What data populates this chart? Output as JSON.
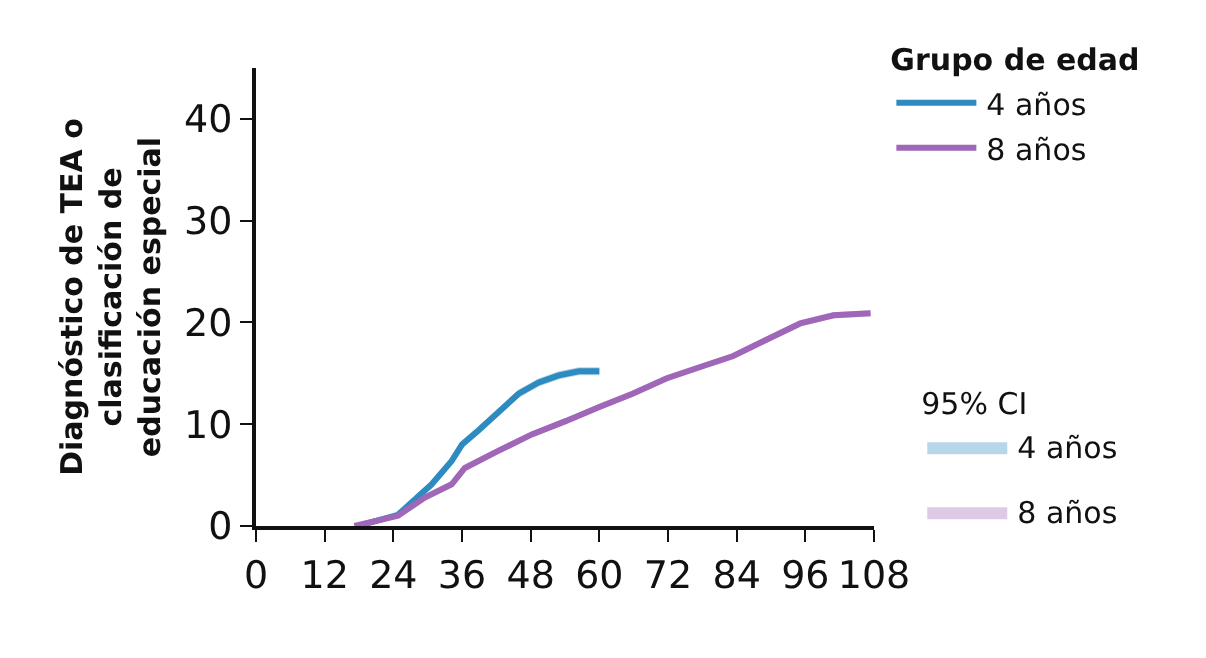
{
  "chart_data": {
    "type": "line",
    "ylabel": "Diagnóstico de TEA o clasificación de educación especial",
    "legend_title": "Grupo de edad",
    "annotations": [
      "95% CI"
    ],
    "xlim": [
      0,
      108
    ],
    "xticks": [
      0,
      12,
      24,
      36,
      48,
      60,
      72,
      84,
      96,
      108
    ],
    "ylim": [
      0,
      45
    ],
    "yticks": [
      0,
      10,
      20,
      30,
      40
    ],
    "legend": "right",
    "marker": "none",
    "line_style": "solid",
    "series": [
      {
        "name": "4 años",
        "color": "#2e8bc0",
        "x": [
          17.8,
          24.8,
          30.7,
          34.2,
          36,
          38.9,
          42.4,
          45.9,
          49.4,
          52.9,
          56.4,
          60
        ],
        "values": [
          0,
          1.1,
          4.1,
          6.4,
          8.0,
          9.4,
          11.2,
          13.0,
          14.1,
          14.8,
          15.2,
          15.2
        ],
        "lower": [
          0,
          0.8,
          3.7,
          6.0,
          7.6,
          9.0,
          10.8,
          12.6,
          13.7,
          14.4,
          14.8,
          14.8
        ],
        "upper": [
          0,
          1.4,
          4.5,
          6.8,
          8.4,
          9.8,
          11.6,
          13.4,
          14.5,
          15.2,
          15.6,
          15.6
        ]
      },
      {
        "name": "8 años",
        "color": "#a066b8",
        "x": [
          17.2,
          24.8,
          29.5,
          34.2,
          36.5,
          42.4,
          48.2,
          54.1,
          60,
          65.8,
          71.7,
          77.5,
          83.4,
          89.2,
          95.1,
          100.9,
          107.4
        ],
        "values": [
          0,
          1.0,
          2.8,
          4.1,
          5.7,
          7.4,
          9.0,
          10.3,
          11.7,
          13.0,
          14.5,
          15.6,
          16.7,
          18.3,
          19.9,
          20.7,
          20.9
        ],
        "lower": [
          0,
          0.8,
          2.5,
          3.8,
          5.4,
          7.1,
          8.7,
          10.0,
          11.4,
          12.7,
          14.2,
          15.3,
          16.4,
          18.0,
          19.6,
          20.4,
          20.6
        ],
        "upper": [
          0,
          1.2,
          3.1,
          4.4,
          6.0,
          7.7,
          9.3,
          10.6,
          12.0,
          13.3,
          14.8,
          15.9,
          17.0,
          18.6,
          20.2,
          21.0,
          21.2
        ]
      }
    ]
  }
}
